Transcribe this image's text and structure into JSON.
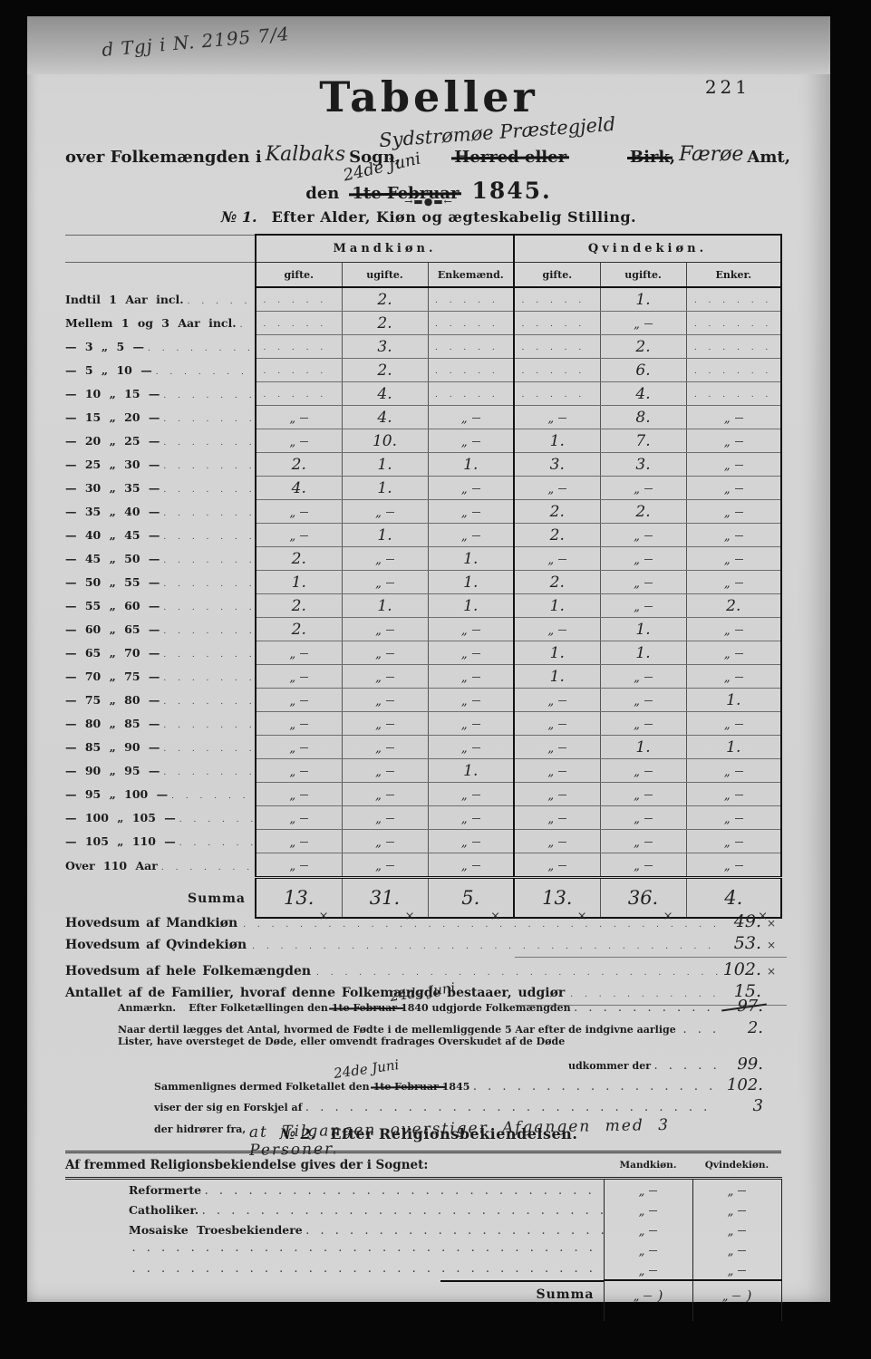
{
  "page": {
    "archival_note": "d Tgj i N. 2195 7/4",
    "page_number": "221",
    "title": "Tabeller",
    "ornament": "→▬●▬←",
    "check_glyph": "×"
  },
  "header": {
    "printed_over": "over Folkemængden i",
    "hw_parish": "Kalbaks",
    "printed_sogn": "Sogn,",
    "hw_prestegjeld": "Sydstrømøe Præstegjeld",
    "struck_herred": "Herred eller",
    "struck_birk": "Birk",
    "birk_comma": ",",
    "hw_amt": "Færøe",
    "printed_amt": "Amt,",
    "printed_den": "den",
    "struck_date": "1te Februar",
    "hw_date": "24de Juni",
    "printed_year": "1845."
  },
  "table1": {
    "section_no": "№ 1.",
    "section_title": "Efter Alder, Kiøn og ægteskabelig Stilling.",
    "group_headers": [
      "Mandkiøn.",
      "Qvindekiøn."
    ],
    "sub_headers": [
      "gifte.",
      "ugifte.",
      "Enkemænd.",
      "gifte.",
      "ugifte.",
      "Enker."
    ],
    "rows": [
      {
        "label": "Indtil 1 Aar incl.",
        "values": [
          "",
          "2.",
          "",
          "",
          "1.",
          ""
        ]
      },
      {
        "label": "Mellem 1 og 3 Aar incl.",
        "values": [
          "",
          "2.",
          "",
          "",
          "„",
          ""
        ]
      },
      {
        "label": "— 3 „ 5 —",
        "values": [
          "",
          "3.",
          "",
          "",
          "2.",
          ""
        ]
      },
      {
        "label": "— 5 „ 10 —",
        "values": [
          "",
          "2.",
          "",
          "",
          "6.",
          ""
        ]
      },
      {
        "label": "— 10 „ 15 —",
        "values": [
          "",
          "4.",
          "",
          "",
          "4.",
          ""
        ]
      },
      {
        "label": "— 15 „ 20 —",
        "values": [
          "„",
          "4.",
          "„",
          "„",
          "8.",
          "„"
        ]
      },
      {
        "label": "— 20 „ 25 —",
        "values": [
          "„",
          "10.",
          "„",
          "1.",
          "7.",
          "„"
        ]
      },
      {
        "label": "— 25 „ 30 —",
        "values": [
          "2.",
          "1.",
          "1.",
          "3.",
          "3.",
          "„"
        ]
      },
      {
        "label": "— 30 „ 35 —",
        "values": [
          "4.",
          "1.",
          "„",
          "„",
          "„",
          "„"
        ]
      },
      {
        "label": "— 35 „ 40 —",
        "values": [
          "„",
          "„",
          "„",
          "2.",
          "2.",
          "„"
        ]
      },
      {
        "label": "— 40 „ 45 —",
        "values": [
          "„",
          "1.",
          "„",
          "2.",
          "„",
          "„"
        ]
      },
      {
        "label": "— 45 „ 50 —",
        "values": [
          "2.",
          "„",
          "1.",
          "„",
          "„",
          "„"
        ]
      },
      {
        "label": "— 50 „ 55 —",
        "values": [
          "1.",
          "„",
          "1.",
          "2.",
          "„",
          "„"
        ]
      },
      {
        "label": "— 55 „ 60 —",
        "values": [
          "2.",
          "1.",
          "1.",
          "1.",
          "„",
          "2."
        ]
      },
      {
        "label": "— 60 „ 65 —",
        "values": [
          "2.",
          "„",
          "„",
          "„",
          "1.",
          "„"
        ]
      },
      {
        "label": "— 65 „ 70 —",
        "values": [
          "„",
          "„",
          "„",
          "1.",
          "1.",
          "„"
        ]
      },
      {
        "label": "— 70 „ 75 —",
        "values": [
          "„",
          "„",
          "„",
          "1.",
          "„",
          "„"
        ]
      },
      {
        "label": "— 75 „ 80 —",
        "values": [
          "„",
          "„",
          "„",
          "„",
          "„",
          "1."
        ]
      },
      {
        "label": "— 80 „ 85 —",
        "values": [
          "„",
          "„",
          "„",
          "„",
          "„",
          "„"
        ]
      },
      {
        "label": "— 85 „ 90 —",
        "values": [
          "„",
          "„",
          "„",
          "„",
          "1.",
          "1."
        ]
      },
      {
        "label": "— 90 „ 95 —",
        "values": [
          "„",
          "„",
          "1.",
          "„",
          "„",
          "„"
        ]
      },
      {
        "label": "— 95 „ 100 —",
        "values": [
          "„",
          "„",
          "„",
          "„",
          "„",
          "„"
        ]
      },
      {
        "label": "— 100 „ 105 —",
        "values": [
          "„",
          "„",
          "„",
          "„",
          "„",
          "„"
        ]
      },
      {
        "label": "— 105 „ 110 —",
        "values": [
          "„",
          "„",
          "„",
          "„",
          "„",
          "„"
        ]
      },
      {
        "label": "Over 110 Aar",
        "values": [
          "„",
          "„",
          "„",
          "„",
          "„",
          "„"
        ]
      }
    ],
    "summa_label": "Summa",
    "summa_values": [
      "13.",
      "31.",
      "5.",
      "13.",
      "36.",
      "4."
    ]
  },
  "totals": {
    "lines": [
      {
        "label": "Hovedsum af Mandkiøn",
        "value": "49.",
        "check": "×",
        "underline": false,
        "spaced": false
      },
      {
        "label": "Hovedsum af Qvindekiøn",
        "value": "53.",
        "check": "×",
        "underline": true,
        "spaced": false
      },
      {
        "label": "Hovedsum af hele Folkemængden",
        "value": "102.",
        "check": "×",
        "underline": false,
        "spaced": true
      },
      {
        "label": "Antallet af de Familier, hvoraf denne Folkemængde bestaaer, udgiør",
        "value": "15.",
        "check": "",
        "underline": true,
        "spaced": false
      }
    ]
  },
  "anmaerkning": {
    "label": "Anmærkn.",
    "line1_pre": "Efter Folketællingen den",
    "line1_struck": "1te Februar",
    "line1_hw": "24de Juni",
    "line1_post": "1840 udgjorde Folkemængden",
    "line1_value": "97.",
    "line2_text": "Naar dertil lægges det Antal, hvormed de Fødte i de mellemliggende 5 Aar efter de indgivne aarlige Lister, have oversteget de Døde, eller omvendt fradrages Overskudet af de Døde",
    "line2_value": "2.",
    "line3_text": "udkommer der",
    "line3_value": "99.",
    "line4_pre": "Sammenlignes dermed Folketallet den",
    "line4_struck": "1te Februar",
    "line4_hw": "24de Juni",
    "line4_post": "1845",
    "line4_value": "102.",
    "line5_text": "viser der sig en Forskjel af",
    "line5_value": "3",
    "line6_text": "der hidrører fra,",
    "line6_hw": "at Tilgangen overstiger Afgangen med 3 Personer."
  },
  "table2": {
    "section_no": "№ 2.",
    "section_title": "Efter Religionsbekiendelsen.",
    "col_headers": [
      "Mandkiøn.",
      "Qvindekiøn."
    ],
    "intro": "Af fremmed Religionsbekiendelse gives der i Sognet:",
    "rows": [
      {
        "label": "Reformerte",
        "values": [
          "„",
          "„"
        ]
      },
      {
        "label": "Catholiker.",
        "values": [
          "„",
          "„"
        ]
      },
      {
        "label": "Mosaiske Troesbekiendere",
        "values": [
          "„",
          "„"
        ]
      },
      {
        "label": "",
        "values": [
          "„",
          "„"
        ]
      },
      {
        "label": "",
        "values": [
          "„",
          "„"
        ]
      }
    ],
    "summa_label": "Summa",
    "summa_values": [
      "„",
      "„"
    ]
  }
}
